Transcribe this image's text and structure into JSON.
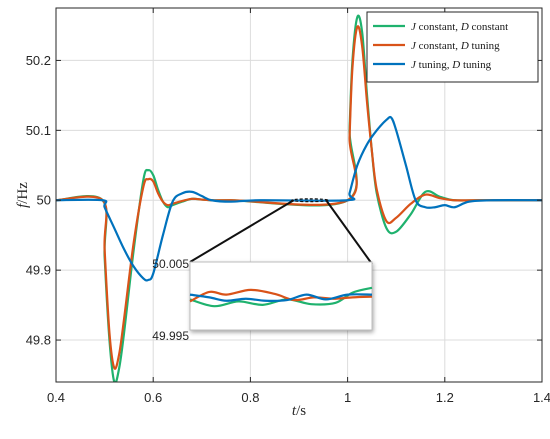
{
  "chart_data": {
    "type": "line",
    "xlabel": "t/s",
    "ylabel": "f/Hz",
    "xlabel_parts": {
      "var": "t",
      "unit": "/s"
    },
    "ylabel_parts": {
      "var": "f",
      "unit": "/Hz"
    },
    "xlim": [
      0.4,
      1.4
    ],
    "ylim": [
      49.74,
      50.275
    ],
    "xticks": [
      0.4,
      0.6,
      0.8,
      1.0,
      1.2,
      1.4
    ],
    "xtick_labels": [
      "0.4",
      "0.6",
      "0.8",
      "1",
      "1.2",
      "1.4"
    ],
    "yticks": [
      49.8,
      49.9,
      50.0,
      50.1,
      50.2
    ],
    "ytick_labels": [
      "49.8",
      "49.9",
      "50",
      "50.1",
      "50.2"
    ],
    "grid": true,
    "legend_position": "top-right",
    "series": [
      {
        "name": "J constant, D constant",
        "legend_parts": [
          "J",
          " constant, ",
          "D",
          " constant"
        ],
        "color": "#1fb26e",
        "x": [
          0.4,
          0.496,
          0.5,
          0.51,
          0.52,
          0.53,
          0.54,
          0.56,
          0.58,
          0.59,
          0.6,
          0.61,
          0.62,
          0.63,
          0.64,
          0.66,
          0.68,
          0.7,
          0.72,
          0.76,
          1.0,
          1.004,
          1.01,
          1.02,
          1.03,
          1.04,
          1.05,
          1.06,
          1.08,
          1.1,
          1.13,
          1.16,
          1.19,
          1.22,
          1.27,
          1.4
        ],
        "y": [
          50.0,
          50.0,
          49.92,
          49.8,
          49.74,
          49.76,
          49.81,
          49.93,
          50.03,
          50.043,
          50.036,
          50.015,
          49.998,
          49.99,
          49.993,
          49.998,
          50.002,
          50.001,
          50.0,
          50.0,
          50.0,
          50.1,
          50.2,
          50.262,
          50.24,
          50.15,
          50.07,
          50.01,
          49.96,
          49.955,
          49.98,
          50.012,
          50.005,
          50.0,
          50.0,
          50.0
        ]
      },
      {
        "name": "J constant, D tuning",
        "legend_parts": [
          "J",
          " constant, ",
          "D",
          " tuning"
        ],
        "color": "#d95319",
        "x": [
          0.4,
          0.496,
          0.5,
          0.51,
          0.52,
          0.53,
          0.54,
          0.56,
          0.58,
          0.59,
          0.6,
          0.61,
          0.62,
          0.63,
          0.64,
          0.66,
          0.68,
          0.7,
          0.72,
          0.76,
          1.0,
          1.004,
          1.01,
          1.02,
          1.03,
          1.04,
          1.05,
          1.06,
          1.08,
          1.1,
          1.13,
          1.16,
          1.19,
          1.22,
          1.27,
          1.4
        ],
        "y": [
          50.0,
          50.0,
          49.93,
          49.81,
          49.76,
          49.78,
          49.83,
          49.94,
          50.02,
          50.03,
          50.027,
          50.01,
          49.998,
          49.993,
          49.995,
          49.999,
          50.002,
          50.001,
          50.0,
          50.0,
          50.0,
          50.09,
          50.19,
          50.248,
          50.22,
          50.14,
          50.07,
          50.015,
          49.97,
          49.975,
          49.995,
          50.008,
          50.003,
          50.0,
          50.0,
          50.0
        ]
      },
      {
        "name": "J tuning, D tuning",
        "legend_parts": [
          "J",
          " tuning, ",
          "D",
          " tuning"
        ],
        "color": "#0072bd",
        "x": [
          0.4,
          0.496,
          0.5,
          0.52,
          0.54,
          0.56,
          0.58,
          0.59,
          0.6,
          0.62,
          0.64,
          0.66,
          0.68,
          0.7,
          0.72,
          0.76,
          0.82,
          1.0,
          1.004,
          1.02,
          1.04,
          1.06,
          1.08,
          1.09,
          1.1,
          1.12,
          1.14,
          1.16,
          1.18,
          1.2,
          1.22,
          1.25,
          1.3,
          1.4
        ],
        "y": [
          50.0,
          50.0,
          49.99,
          49.96,
          49.93,
          49.905,
          49.888,
          49.886,
          49.895,
          49.95,
          49.998,
          50.01,
          50.012,
          50.006,
          50.0,
          49.998,
          50.0,
          50.0,
          50.01,
          50.05,
          50.08,
          50.1,
          50.115,
          50.118,
          50.1,
          50.05,
          50.0,
          49.99,
          49.99,
          49.993,
          49.99,
          49.998,
          50.0,
          50.0
        ]
      }
    ],
    "inset": {
      "xlim": [
        0.885,
        0.96
      ],
      "ylim": [
        49.995,
        50.005
      ],
      "ytick_labels": [
        "50.005",
        "49.995"
      ],
      "zoom_region": {
        "x": [
          0.885,
          0.96
        ],
        "y": [
          49.998,
          50.002
        ]
      },
      "series": [
        {
          "color": "#1fb26e",
          "x": [
            0.885,
            0.895,
            0.905,
            0.915,
            0.925,
            0.935,
            0.945,
            0.952,
            0.96
          ],
          "y": [
            49.9995,
            49.9985,
            49.9992,
            49.9987,
            49.9995,
            49.9988,
            49.999,
            50.0005,
            50.0012
          ]
        },
        {
          "color": "#d95319",
          "x": [
            0.885,
            0.893,
            0.9,
            0.91,
            0.92,
            0.928,
            0.936,
            0.944,
            0.952,
            0.96
          ],
          "y": [
            49.9992,
            50.0006,
            50.0002,
            50.0009,
            50.0003,
            49.9994,
            49.9998,
            49.9996,
            49.9998,
            49.9999
          ]
        },
        {
          "color": "#0072bd",
          "x": [
            0.885,
            0.893,
            0.9,
            0.908,
            0.916,
            0.925,
            0.933,
            0.941,
            0.95,
            0.96
          ],
          "y": [
            50.0002,
            49.9998,
            49.9993,
            49.9996,
            49.9993,
            49.9994,
            50.0002,
            49.9995,
            50.0002,
            50.0002
          ]
        }
      ]
    }
  }
}
